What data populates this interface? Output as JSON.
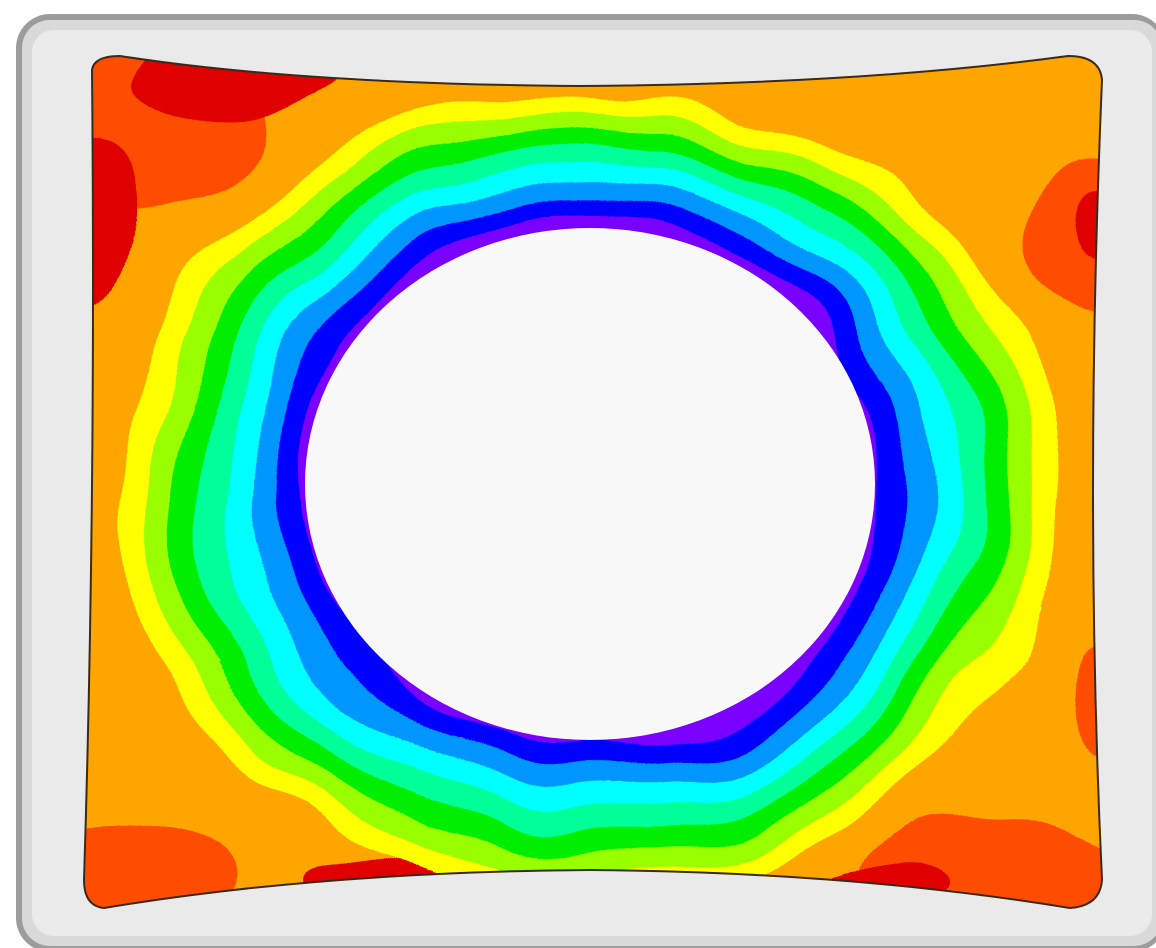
{
  "colors": {
    "page_background": "#ffffff",
    "frame_outer": "#9c9c9c",
    "frame_middle": "#d9d9d9",
    "frame_inner": "#eaeaea",
    "hole_fill": "#f8f8f8",
    "plate_outline": "#3a2a1a",
    "contour_bands": [
      "#e00000",
      "#ff4d00",
      "#ffa500",
      "#ffff00",
      "#99ff00",
      "#00ee00",
      "#00ff99",
      "#00ffff",
      "#0096ff",
      "#0000ff",
      "#7a00ff"
    ]
  }
}
